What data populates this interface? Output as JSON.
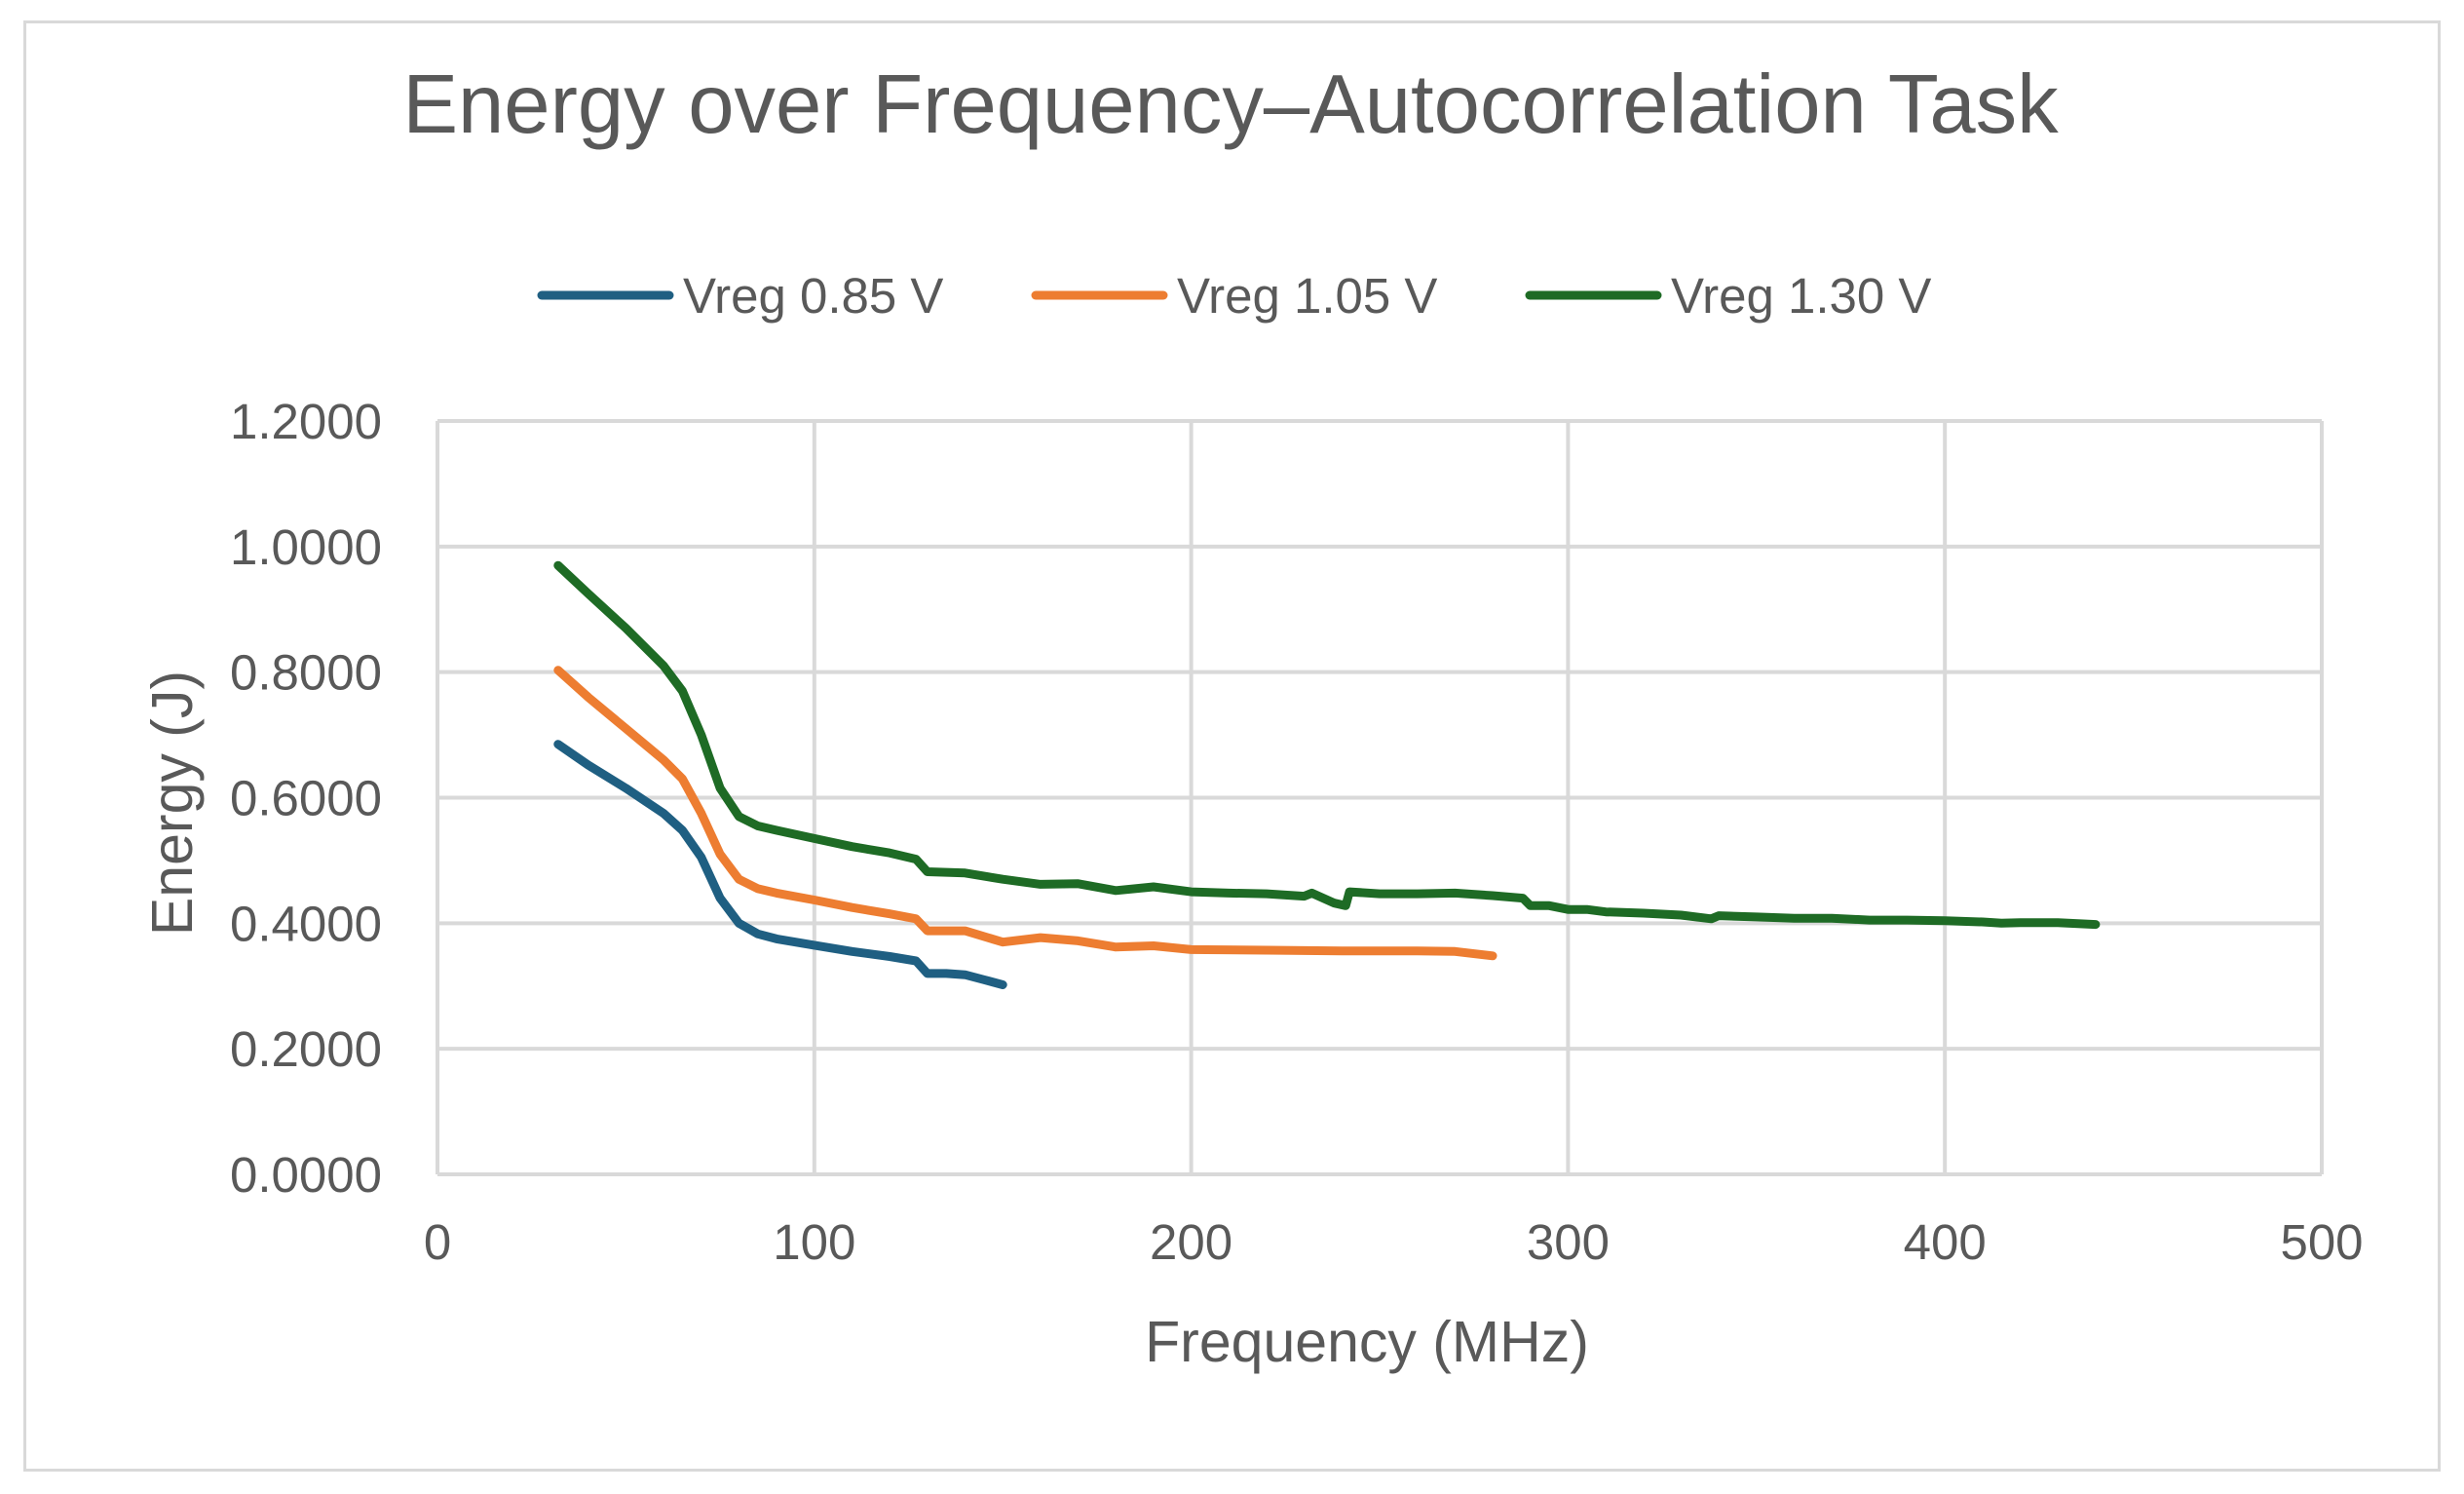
{
  "chart_data": {
    "type": "line",
    "title": "Energy over Frequency–Autocorrelation Task",
    "xlabel": "Frequency (MHz)",
    "ylabel": "Energy (J)",
    "xlim": [
      0,
      500
    ],
    "ylim": [
      0,
      1.2
    ],
    "xticks": [
      "0",
      "100",
      "200",
      "300",
      "400",
      "500"
    ],
    "yticks": [
      "0.0000",
      "0.2000",
      "0.4000",
      "0.6000",
      "0.8000",
      "1.0000",
      "1.2000"
    ],
    "grid": true,
    "legend_position": "top",
    "series": [
      {
        "name": "Vreg 0.85 V",
        "color": "#1f5f82",
        "x": [
          32,
          40,
          50,
          60,
          65,
          70,
          75,
          80,
          85,
          90,
          100,
          110,
          120,
          127,
          130,
          135,
          140,
          145,
          150
        ],
        "y": [
          0.685,
          0.652,
          0.615,
          0.575,
          0.548,
          0.505,
          0.44,
          0.4,
          0.383,
          0.375,
          0.365,
          0.355,
          0.347,
          0.34,
          0.32,
          0.32,
          0.318,
          0.31,
          0.302
        ]
      },
      {
        "name": "Vreg 1.05 V",
        "color": "#ed7d31",
        "x": [
          32,
          40,
          50,
          60,
          65,
          70,
          75,
          80,
          85,
          90,
          100,
          110,
          120,
          127,
          130,
          140,
          150,
          160,
          170,
          180,
          190,
          200,
          220,
          240,
          260,
          270,
          280
        ],
        "y": [
          0.803,
          0.76,
          0.71,
          0.66,
          0.63,
          0.575,
          0.51,
          0.47,
          0.455,
          0.448,
          0.437,
          0.425,
          0.415,
          0.407,
          0.388,
          0.388,
          0.37,
          0.377,
          0.372,
          0.362,
          0.364,
          0.358,
          0.357,
          0.356,
          0.356,
          0.355,
          0.348
        ]
      },
      {
        "name": "Vreg 1.30 V",
        "color": "#1e6b25",
        "x": [
          32,
          40,
          50,
          60,
          65,
          70,
          75,
          80,
          85,
          90,
          100,
          110,
          120,
          127,
          130,
          140,
          150,
          160,
          170,
          180,
          190,
          200,
          210,
          220,
          230,
          232,
          238,
          241,
          242,
          250,
          260,
          270,
          280,
          288,
          290,
          295,
          300,
          305,
          310,
          320,
          330,
          338,
          340,
          350,
          360,
          370,
          380,
          390,
          400,
          410,
          415,
          420,
          430,
          440
        ],
        "y": [
          0.97,
          0.925,
          0.87,
          0.81,
          0.77,
          0.7,
          0.615,
          0.57,
          0.555,
          0.548,
          0.535,
          0.522,
          0.512,
          0.502,
          0.482,
          0.48,
          0.47,
          0.462,
          0.463,
          0.452,
          0.458,
          0.45,
          0.448,
          0.447,
          0.443,
          0.448,
          0.432,
          0.428,
          0.45,
          0.447,
          0.447,
          0.448,
          0.444,
          0.44,
          0.428,
          0.428,
          0.422,
          0.422,
          0.418,
          0.416,
          0.413,
          0.407,
          0.412,
          0.41,
          0.408,
          0.408,
          0.405,
          0.405,
          0.404,
          0.402,
          0.4,
          0.401,
          0.401,
          0.398
        ]
      }
    ]
  }
}
